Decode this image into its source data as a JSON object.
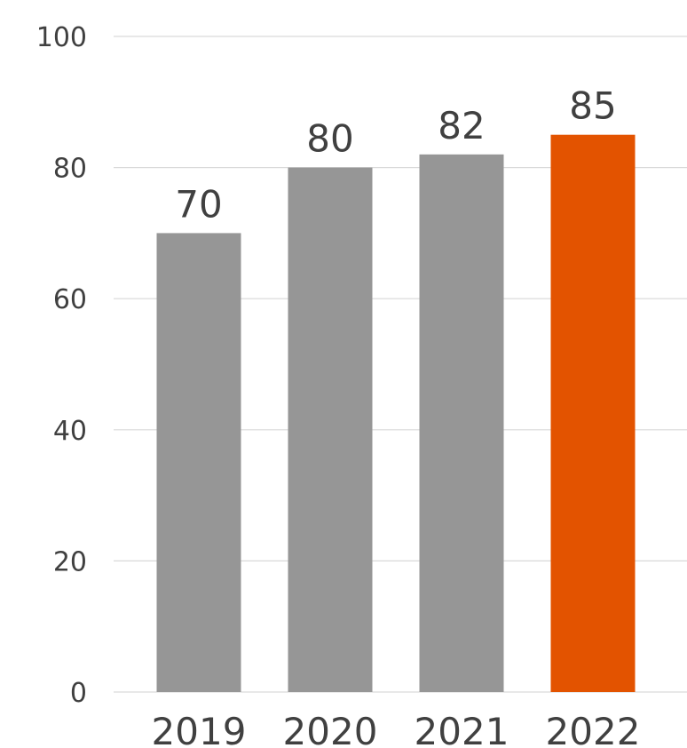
{
  "chart_data": {
    "type": "bar",
    "title": "",
    "xlabel": "",
    "ylabel": "",
    "categories": [
      "2019",
      "2020",
      "2021",
      "2022"
    ],
    "values": [
      70,
      80,
      82,
      85
    ],
    "data_labels": [
      "70",
      "80",
      "82",
      "85"
    ],
    "ylim": [
      0,
      100
    ],
    "yticks": [
      0,
      20,
      40,
      60,
      80,
      100
    ],
    "ytick_labels": [
      "0",
      "20",
      "40",
      "60",
      "80",
      "100"
    ],
    "grid": true,
    "legend": "none",
    "colors": {
      "default_bar": "#969696",
      "highlight_bar": "#e35300",
      "gridline": "#d9d9d9",
      "text": "#404040"
    },
    "highlight_index": 3
  }
}
